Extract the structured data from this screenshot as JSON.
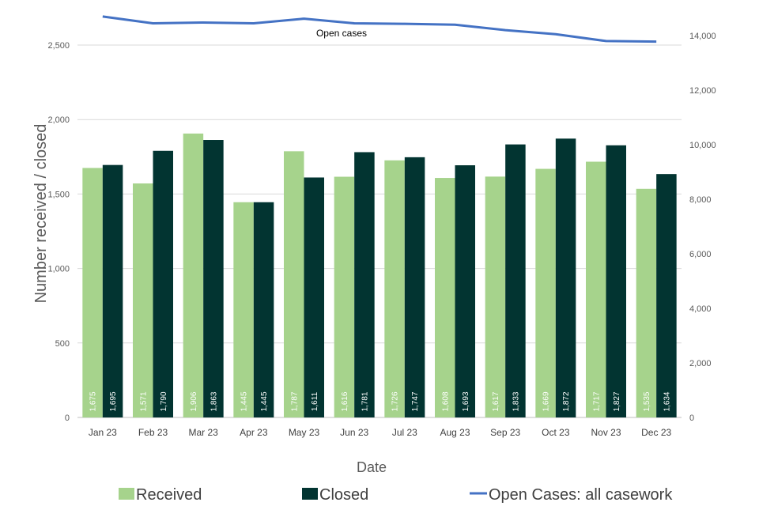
{
  "chart_data": {
    "type": "bar",
    "categories": [
      "Jan 23",
      "Feb 23",
      "Mar 23",
      "Apr 23",
      "May 23",
      "Jun 23",
      "Jul 23",
      "Aug 23",
      "Sep 23",
      "Oct 23",
      "Nov 23",
      "Dec 23"
    ],
    "series": [
      {
        "name": "Received",
        "color": "#a6d38c",
        "label_color": "#ffffff",
        "axis": "primary",
        "values": [
          1675,
          1571,
          1906,
          1445,
          1787,
          1616,
          1726,
          1608,
          1617,
          1669,
          1717,
          1535
        ],
        "data_labels": [
          "1,675",
          "1,571",
          "1,906",
          "1,445",
          "1,787",
          "1,616",
          "1,726",
          "1,608",
          "1,617",
          "1,669",
          "1,717",
          "1,535"
        ]
      },
      {
        "name": "Closed",
        "color": "#023431",
        "label_color": "#ffffff",
        "axis": "primary",
        "values": [
          1695,
          1790,
          1863,
          1445,
          1611,
          1781,
          1747,
          1693,
          1833,
          1872,
          1827,
          1634
        ],
        "data_labels": [
          "1,695",
          "1,790",
          "1,863",
          "1,445",
          "1,611",
          "1,781",
          "1,747",
          "1,693",
          "1,833",
          "1,872",
          "1,827",
          "1,634"
        ]
      },
      {
        "name": "Open Cases: all casework",
        "color": "#4472c4",
        "type": "line",
        "axis": "secondary",
        "values": [
          14700,
          14450,
          14480,
          14450,
          14620,
          14450,
          14430,
          14400,
          14200,
          14050,
          13800,
          13780
        ]
      }
    ],
    "annotation": "Open cases",
    "xlabel": "Date",
    "ylabel": "Number received / closed",
    "ylim": [
      0,
      2500
    ],
    "y2lim": [
      0,
      14000
    ],
    "yticks": [
      "0",
      "500",
      "1,000",
      "1,500",
      "2,000",
      "2,500"
    ],
    "y2ticks": [
      "0",
      "2,000",
      "4,000",
      "6,000",
      "8,000",
      "10,000",
      "12,000",
      "14,000"
    ],
    "grid": true,
    "legend_position": "bottom"
  }
}
